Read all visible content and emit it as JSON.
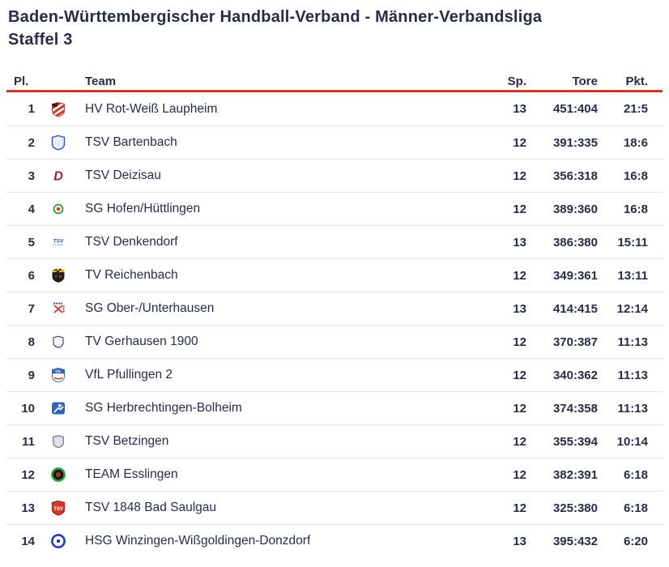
{
  "page": {
    "title_line1": "Baden-Württembergischer Handball-Verband - Männer-Verbandsliga",
    "title_line2": "Staffel 3"
  },
  "theme": {
    "text_color": "#262e45",
    "accent_color": "#c43a23",
    "separator_color": "#e3e3e5",
    "background_color": "#ffffff"
  },
  "table": {
    "columns": {
      "place": "Pl.",
      "team": "Team",
      "games": "Sp.",
      "goals": "Tore",
      "points": "Pkt."
    },
    "rows": [
      {
        "place": "1",
        "team": "HV Rot-Weiß Laupheim",
        "games": "13",
        "goals": "451:404",
        "points": "21:5",
        "logo": {
          "icon": "club-crest-icon",
          "kind": "striped-shield",
          "colors": [
            "#ffffff",
            "#cf3b30",
            "#1d1d1d"
          ]
        }
      },
      {
        "place": "2",
        "team": "TSV Bartenbach",
        "games": "12",
        "goals": "391:335",
        "points": "18:6",
        "logo": {
          "icon": "club-crest-icon",
          "kind": "shield",
          "colors": [
            "#e8effb",
            "#2d55b8",
            "#2d55b8"
          ],
          "label": ""
        }
      },
      {
        "place": "3",
        "team": "TSV Deizisau",
        "games": "12",
        "goals": "356:318",
        "points": "16:8",
        "logo": {
          "icon": "club-crest-icon",
          "kind": "letter",
          "colors": [
            "#8e2746"
          ],
          "label": "D"
        }
      },
      {
        "place": "4",
        "team": "SG Hofen/Hüttlingen",
        "games": "12",
        "goals": "389:360",
        "points": "16:8",
        "logo": {
          "icon": "club-crest-icon",
          "kind": "ring",
          "colors": [
            "#eef6ea",
            "#3f9c40",
            "#cf3b30"
          ],
          "scale": 0.72
        }
      },
      {
        "place": "5",
        "team": "TSV Denkendorf",
        "games": "13",
        "goals": "386:380",
        "points": "15:11",
        "logo": {
          "icon": "club-crest-icon",
          "kind": "wordmark",
          "colors": [
            "#2a4fd0"
          ],
          "label": "TSV"
        }
      },
      {
        "place": "6",
        "team": "TV Reichenbach",
        "games": "12",
        "goals": "349:361",
        "points": "13:11",
        "logo": {
          "icon": "club-crest-icon",
          "kind": "banded-shield",
          "colors": [
            "#1c1c1c",
            "#e3b71e",
            "#d03a2f"
          ],
          "label": "V R"
        }
      },
      {
        "place": "7",
        "team": "SG Ober-/Unterhausen",
        "games": "13",
        "goals": "414:415",
        "points": "12:14",
        "logo": {
          "icon": "club-crest-icon",
          "kind": "cross",
          "colors": [
            "#ffffff",
            "#d03a2f",
            "#2a4fd0"
          ]
        }
      },
      {
        "place": "8",
        "team": "TV Gerhausen 1900",
        "games": "12",
        "goals": "370:387",
        "points": "11:13",
        "logo": {
          "icon": "club-crest-icon",
          "kind": "shield",
          "colors": [
            "#f5f6fa",
            "#3a4270",
            "#3a4270"
          ],
          "label": "",
          "scale": 0.8
        }
      },
      {
        "place": "9",
        "team": "VfL Pfullingen 2",
        "games": "12",
        "goals": "340:362",
        "points": "11:13",
        "logo": {
          "icon": "club-crest-icon",
          "kind": "half-shield",
          "colors": [
            "#3a63b0",
            "#ffffff",
            "#cf3b30"
          ],
          "label": "VfL"
        }
      },
      {
        "place": "10",
        "team": "SG Herbrechtingen-Bolheim",
        "games": "12",
        "goals": "374:358",
        "points": "11:13",
        "logo": {
          "icon": "club-crest-icon",
          "kind": "player-square",
          "colors": [
            "#2e64b5",
            "#ffffff"
          ]
        }
      },
      {
        "place": "11",
        "team": "TSV Betzingen",
        "games": "12",
        "goals": "355:394",
        "points": "10:14",
        "logo": {
          "icon": "club-crest-icon",
          "kind": "shield",
          "colors": [
            "#dfe3e9",
            "#6b7585",
            "#4a78b8"
          ],
          "label": "",
          "scale": 0.85
        }
      },
      {
        "place": "12",
        "team": "TEAM Esslingen",
        "games": "12",
        "goals": "382:391",
        "points": "6:18",
        "logo": {
          "icon": "club-crest-icon",
          "kind": "ring",
          "colors": [
            "#151515",
            "#2f9e3f",
            "#c0281e"
          ]
        }
      },
      {
        "place": "13",
        "team": "TSV 1848 Bad Saulgau",
        "games": "12",
        "goals": "325:380",
        "points": "6:18",
        "logo": {
          "icon": "club-crest-icon",
          "kind": "shield",
          "colors": [
            "#d4382c",
            "#b02318",
            "#ffffff"
          ],
          "label": "TSV"
        }
      },
      {
        "place": "14",
        "team": "HSG Winzingen-Wißgoldingen-Donzdorf",
        "games": "13",
        "goals": "395:432",
        "points": "6:20",
        "logo": {
          "icon": "club-crest-icon",
          "kind": "ring",
          "colors": [
            "#ffffff",
            "#2634c8",
            "#2634c8"
          ],
          "center_r": 2.2
        }
      }
    ]
  }
}
